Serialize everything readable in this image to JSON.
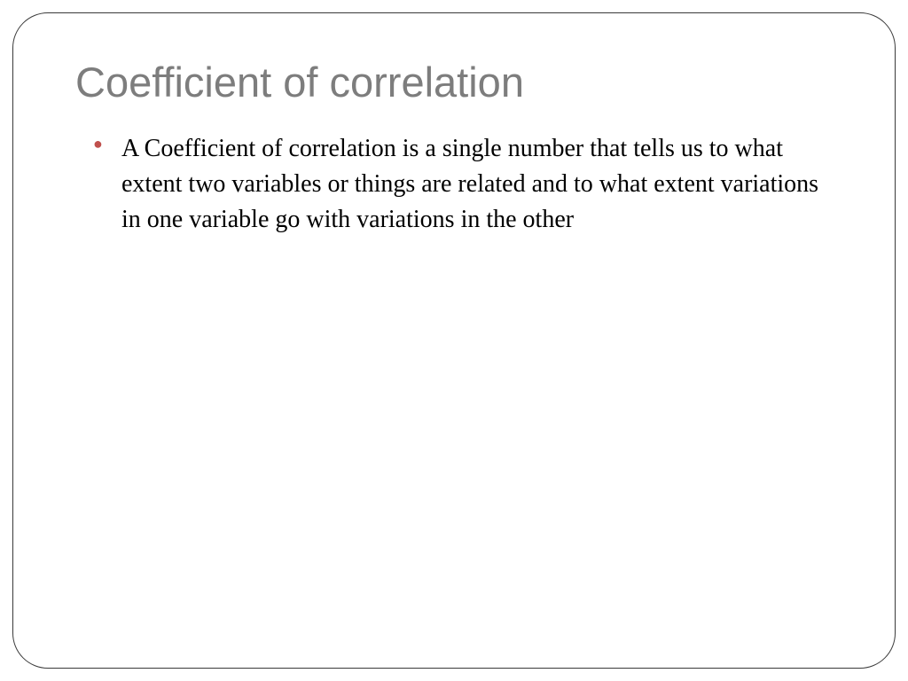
{
  "slide": {
    "title": "Coefficient of correlation",
    "bullets": [
      "A Coefficient of correlation is a single number that tells us to what extent two variables or things are related and to what extent variations in one variable go with variations in the other"
    ],
    "styling": {
      "title_color": "#7d7d7d",
      "title_fontsize": 47,
      "title_font": "Segoe UI",
      "bullet_color": "#c0504d",
      "body_text_color": "#000000",
      "body_fontsize": 28,
      "body_font": "Garamond",
      "frame_border_color": "#3a3a3a",
      "frame_border_radius": 40,
      "background_color": "#ffffff"
    }
  }
}
